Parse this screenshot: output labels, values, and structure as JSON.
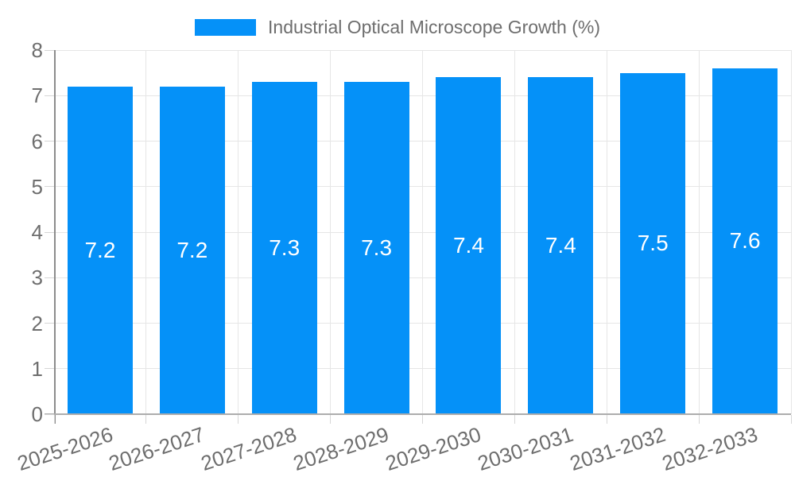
{
  "legend": {
    "label": "Industrial Optical Microscope Growth (%)"
  },
  "chart_data": {
    "type": "bar",
    "title": "",
    "xlabel": "",
    "ylabel": "",
    "categories": [
      "2025-2026",
      "2026-2027",
      "2027-2028",
      "2028-2029",
      "2029-2030",
      "2030-2031",
      "2031-2032",
      "2032-2033"
    ],
    "series": [
      {
        "name": "Industrial Optical Microscope Growth (%)",
        "values": [
          7.2,
          7.2,
          7.3,
          7.3,
          7.4,
          7.4,
          7.5,
          7.6
        ]
      }
    ],
    "value_labels": [
      "7.2",
      "7.2",
      "7.3",
      "7.3",
      "7.4",
      "7.4",
      "7.5",
      "7.6"
    ],
    "ylim": [
      0,
      8
    ],
    "yticks": [
      0,
      1,
      2,
      3,
      4,
      5,
      6,
      7,
      8
    ],
    "grid": true,
    "legend_position": "top"
  },
  "colors": {
    "bar": "#0591f8",
    "grid": "#e6e6e6",
    "y_axis_line": "#8c8c8c",
    "x_axis_line": "#adadad",
    "tick": "#d6d6d6",
    "text": "#6e6e6e",
    "value_label": "#ffffff"
  }
}
